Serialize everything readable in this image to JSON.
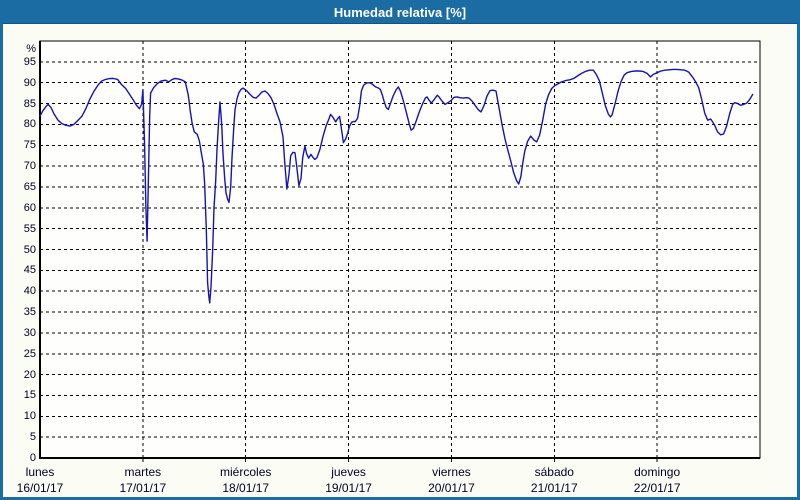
{
  "header": {
    "title": "Humedad relativa [%]",
    "bg_color": "#1c6ca4",
    "text_color": "#ffffff"
  },
  "frame": {
    "border_color": "#1c6ca4",
    "page_bg": "#fbfcf3",
    "plot_bg": "#fefefc",
    "grid_color": "#000000",
    "axis_color": "#000000",
    "label_color": "#000028"
  },
  "y_axis": {
    "unit_label": "%",
    "tick_labels": [
      "0",
      "5",
      "10",
      "15",
      "20",
      "25",
      "30",
      "35",
      "40",
      "45",
      "50",
      "55",
      "60",
      "65",
      "70",
      "75",
      "80",
      "85",
      "90",
      "95"
    ],
    "tick_values": [
      0,
      5,
      10,
      15,
      20,
      25,
      30,
      35,
      40,
      45,
      50,
      55,
      60,
      65,
      70,
      75,
      80,
      85,
      90,
      95
    ]
  },
  "x_axis": {
    "days": [
      {
        "name": "lunes",
        "date": "16/01/17"
      },
      {
        "name": "martes",
        "date": "17/01/17"
      },
      {
        "name": "miércoles",
        "date": "18/01/17"
      },
      {
        "name": "jueves",
        "date": "19/01/17"
      },
      {
        "name": "viernes",
        "date": "20/01/17"
      },
      {
        "name": "sábado",
        "date": "21/01/17"
      },
      {
        "name": "domingo",
        "date": "22/01/17"
      }
    ]
  },
  "chart_data": {
    "type": "line",
    "title": "Humedad relativa [%]",
    "ylabel": "%",
    "ylim": [
      0,
      100
    ],
    "y_grid_step": 5,
    "x_unit": "hours since lunes 16/01/17 00:00",
    "xlim": [
      0,
      168
    ],
    "x_grid_step_hours": 24,
    "grid": "dashed",
    "legend": "none",
    "line_color": "#1414b4",
    "series": [
      {
        "name": "Humedad relativa",
        "points": [
          [
            0,
            82
          ],
          [
            0.7,
            83.3
          ],
          [
            1.4,
            84.3
          ],
          [
            1.9,
            84.8
          ],
          [
            2.6,
            84
          ],
          [
            3.3,
            82.5
          ],
          [
            4.2,
            81
          ],
          [
            5.1,
            80.2
          ],
          [
            6,
            79.8
          ],
          [
            7,
            79.6
          ],
          [
            7.9,
            80
          ],
          [
            8.8,
            80.9
          ],
          [
            9.8,
            82
          ],
          [
            10.7,
            83.8
          ],
          [
            11.6,
            86
          ],
          [
            12.5,
            87.8
          ],
          [
            13.5,
            89.4
          ],
          [
            14.4,
            90.4
          ],
          [
            15.3,
            90.8
          ],
          [
            16.3,
            91
          ],
          [
            17.2,
            91
          ],
          [
            18.1,
            90.8
          ],
          [
            19,
            89.6
          ],
          [
            20,
            88.6
          ],
          [
            20.9,
            87.2
          ],
          [
            21.8,
            85.8
          ],
          [
            22.5,
            84.6
          ],
          [
            23.2,
            83.8
          ],
          [
            23.7,
            84.8
          ],
          [
            24,
            88.3
          ],
          [
            24.4,
            75
          ],
          [
            24.7,
            60
          ],
          [
            25,
            52
          ],
          [
            25.3,
            67
          ],
          [
            25.6,
            82
          ],
          [
            25.8,
            87.5
          ],
          [
            26.5,
            88.8
          ],
          [
            27.4,
            89.8
          ],
          [
            28.3,
            90.4
          ],
          [
            29.3,
            90.6
          ],
          [
            30,
            90.2
          ],
          [
            30.7,
            90.7
          ],
          [
            31.4,
            91
          ],
          [
            32.3,
            90.9
          ],
          [
            33.2,
            90.6
          ],
          [
            33.9,
            90.2
          ],
          [
            34.6,
            87
          ],
          [
            35.1,
            83
          ],
          [
            35.5,
            80.3
          ],
          [
            36,
            78.2
          ],
          [
            36.7,
            77.6
          ],
          [
            37.2,
            76
          ],
          [
            37.6,
            73.5
          ],
          [
            38.1,
            70.5
          ],
          [
            38.4,
            66
          ],
          [
            38.8,
            55
          ],
          [
            39.1,
            42
          ],
          [
            39.4,
            38.6
          ],
          [
            39.6,
            37.2
          ],
          [
            39.9,
            41
          ],
          [
            40.3,
            50
          ],
          [
            40.6,
            60
          ],
          [
            41,
            66.5
          ],
          [
            41.3,
            74
          ],
          [
            41.7,
            81
          ],
          [
            42,
            85.4
          ],
          [
            42.4,
            80
          ],
          [
            42.7,
            73
          ],
          [
            43.1,
            67
          ],
          [
            43.4,
            63.6
          ],
          [
            43.8,
            62
          ],
          [
            44.1,
            61.3
          ],
          [
            44.5,
            65
          ],
          [
            44.8,
            72
          ],
          [
            45.2,
            79
          ],
          [
            45.5,
            83.5
          ],
          [
            46,
            86.2
          ],
          [
            46.4,
            87.6
          ],
          [
            46.9,
            88.4
          ],
          [
            47.4,
            88.7
          ],
          [
            47.8,
            88.4
          ],
          [
            48.3,
            88
          ],
          [
            49,
            87.2
          ],
          [
            49.7,
            86.5
          ],
          [
            50.4,
            86.3
          ],
          [
            51.1,
            87
          ],
          [
            51.8,
            87.8
          ],
          [
            52.5,
            88
          ],
          [
            53.2,
            87.4
          ],
          [
            53.9,
            86.4
          ],
          [
            54.6,
            84.8
          ],
          [
            55.3,
            82.6
          ],
          [
            56,
            80.6
          ],
          [
            56.7,
            77
          ],
          [
            57.1,
            71
          ],
          [
            57.6,
            64.5
          ],
          [
            58.1,
            68
          ],
          [
            58.5,
            72.5
          ],
          [
            59,
            73.3
          ],
          [
            59.5,
            73.2
          ],
          [
            59.9,
            70
          ],
          [
            60.4,
            65.3
          ],
          [
            60.9,
            67
          ],
          [
            61.3,
            72
          ],
          [
            61.8,
            74.8
          ],
          [
            62.2,
            73
          ],
          [
            62.7,
            71.9
          ],
          [
            63.2,
            72.8
          ],
          [
            63.6,
            72.2
          ],
          [
            64.1,
            71.6
          ],
          [
            64.6,
            72
          ],
          [
            65.3,
            74
          ],
          [
            66,
            77
          ],
          [
            66.7,
            79.5
          ],
          [
            67.4,
            81.3
          ],
          [
            67.8,
            82.4
          ],
          [
            68.3,
            81.8
          ],
          [
            69,
            80.6
          ],
          [
            69.4,
            81.3
          ],
          [
            69.9,
            81.9
          ],
          [
            70.4,
            78.5
          ],
          [
            70.8,
            75.6
          ],
          [
            71.3,
            76.5
          ],
          [
            71.8,
            77.9
          ],
          [
            72.2,
            79.5
          ],
          [
            72.7,
            80.5
          ],
          [
            73.2,
            80.7
          ],
          [
            73.6,
            80.7
          ],
          [
            74.1,
            81.5
          ],
          [
            74.6,
            84.5
          ],
          [
            75,
            88
          ],
          [
            75.5,
            89.4
          ],
          [
            76.2,
            89.9
          ],
          [
            76.9,
            90
          ],
          [
            77.6,
            89.6
          ],
          [
            78.3,
            89
          ],
          [
            79,
            88.7
          ],
          [
            79.4,
            88.4
          ],
          [
            79.9,
            87
          ],
          [
            80.3,
            85.5
          ],
          [
            80.8,
            84
          ],
          [
            81.3,
            83.6
          ],
          [
            81.7,
            84.8
          ],
          [
            82.4,
            86.8
          ],
          [
            83.1,
            88.3
          ],
          [
            83.6,
            89
          ],
          [
            84.1,
            88
          ],
          [
            84.8,
            85.6
          ],
          [
            85.5,
            82.8
          ],
          [
            86.2,
            80
          ],
          [
            86.6,
            78.6
          ],
          [
            87.1,
            79
          ],
          [
            87.8,
            80.9
          ],
          [
            88.5,
            83
          ],
          [
            89.2,
            84.8
          ],
          [
            89.9,
            86.3
          ],
          [
            90.3,
            86.6
          ],
          [
            90.8,
            85.8
          ],
          [
            91.3,
            85.1
          ],
          [
            92,
            86
          ],
          [
            92.7,
            87
          ],
          [
            93.1,
            86.6
          ],
          [
            93.8,
            85.6
          ],
          [
            94.5,
            84.8
          ],
          [
            95.2,
            85.2
          ],
          [
            95.9,
            85.7
          ],
          [
            96.6,
            86.5
          ],
          [
            97.3,
            86.6
          ],
          [
            98,
            86.4
          ],
          [
            98.7,
            86.3
          ],
          [
            99.4,
            86.4
          ],
          [
            100.1,
            86.3
          ],
          [
            100.8,
            85.6
          ],
          [
            101.5,
            84.6
          ],
          [
            102.2,
            83.6
          ],
          [
            102.9,
            83
          ],
          [
            103.6,
            84.5
          ],
          [
            104.3,
            86.8
          ],
          [
            105,
            88.1
          ],
          [
            105.7,
            88.2
          ],
          [
            106.4,
            88
          ],
          [
            107.1,
            84
          ],
          [
            107.8,
            80
          ],
          [
            108.5,
            76.5
          ],
          [
            109.2,
            73.7
          ],
          [
            109.9,
            71
          ],
          [
            110.5,
            68.5
          ],
          [
            111.2,
            66.5
          ],
          [
            111.7,
            65.7
          ],
          [
            112.2,
            67.5
          ],
          [
            112.6,
            70.5
          ],
          [
            113.1,
            73.5
          ],
          [
            113.8,
            76
          ],
          [
            114.5,
            77.2
          ],
          [
            115.2,
            76.3
          ],
          [
            115.9,
            75.8
          ],
          [
            116.6,
            77.5
          ],
          [
            117.3,
            81
          ],
          [
            118,
            85
          ],
          [
            118.7,
            87.2
          ],
          [
            119.4,
            88.6
          ],
          [
            120.1,
            89.3
          ],
          [
            120.8,
            89.7
          ],
          [
            121.7,
            90.2
          ],
          [
            122.6,
            90.5
          ],
          [
            123.6,
            90.7
          ],
          [
            124.5,
            91
          ],
          [
            125.4,
            91.6
          ],
          [
            126.3,
            92.2
          ],
          [
            127.3,
            92.7
          ],
          [
            128.2,
            93
          ],
          [
            129.1,
            93
          ],
          [
            129.8,
            92
          ],
          [
            130.5,
            90.5
          ],
          [
            131.2,
            87.5
          ],
          [
            131.9,
            84.5
          ],
          [
            132.6,
            82.5
          ],
          [
            133.1,
            81.8
          ],
          [
            133.5,
            82.3
          ],
          [
            134.2,
            85
          ],
          [
            134.9,
            88
          ],
          [
            135.6,
            90.3
          ],
          [
            136.3,
            91.8
          ],
          [
            137,
            92.4
          ],
          [
            138,
            92.7
          ],
          [
            138.9,
            92.8
          ],
          [
            139.8,
            92.8
          ],
          [
            140.7,
            92.7
          ],
          [
            141.7,
            92.2
          ],
          [
            142.4,
            91.4
          ],
          [
            143.1,
            92
          ],
          [
            144,
            92.4
          ],
          [
            144.9,
            92.8
          ],
          [
            145.8,
            93
          ],
          [
            146.8,
            93.1
          ],
          [
            147.7,
            93.2
          ],
          [
            148.6,
            93.2
          ],
          [
            149.6,
            93.1
          ],
          [
            150.5,
            93
          ],
          [
            151.4,
            92.5
          ],
          [
            152.3,
            91.3
          ],
          [
            153,
            90.2
          ],
          [
            153.7,
            88.8
          ],
          [
            154.4,
            86
          ],
          [
            155.1,
            82.7
          ],
          [
            155.8,
            81
          ],
          [
            156.5,
            81.3
          ],
          [
            157,
            80.5
          ],
          [
            157.4,
            79.8
          ],
          [
            158.1,
            78.2
          ],
          [
            158.8,
            77.5
          ],
          [
            159.5,
            77.7
          ],
          [
            160.2,
            79.6
          ],
          [
            160.9,
            82.5
          ],
          [
            161.6,
            84.8
          ],
          [
            162.1,
            85.2
          ],
          [
            162.8,
            85
          ],
          [
            163.5,
            84.6
          ],
          [
            164.2,
            84.8
          ],
          [
            164.9,
            85.1
          ],
          [
            165.6,
            86
          ],
          [
            166.3,
            87.2
          ]
        ]
      }
    ]
  }
}
